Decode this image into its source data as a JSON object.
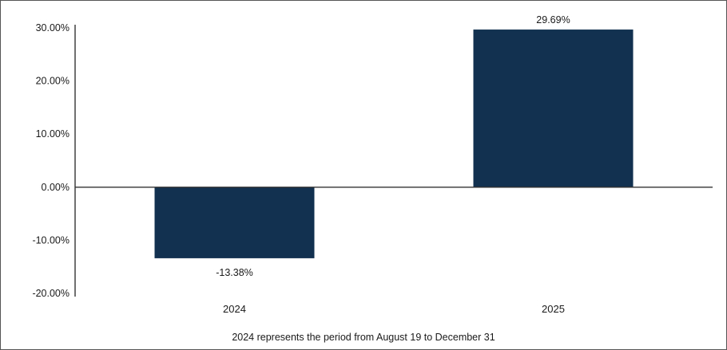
{
  "chart_data": {
    "type": "bar",
    "categories": [
      "2024",
      "2025"
    ],
    "values": [
      -13.38,
      29.69
    ],
    "data_labels": [
      "-13.38%",
      "29.69%"
    ],
    "title": "",
    "xlabel": "",
    "ylabel": "",
    "ylim": [
      -20,
      30
    ],
    "y_ticks": [
      30,
      20,
      10,
      0,
      -10,
      -20
    ],
    "y_tick_labels": [
      "30.00%",
      "20.00%",
      "10.00%",
      "0.00%",
      "-10.00%",
      "-20.00%"
    ],
    "grid": false,
    "bar_color": "#12304f",
    "footnote": "2024 represents the period from August 19 to December 31"
  }
}
